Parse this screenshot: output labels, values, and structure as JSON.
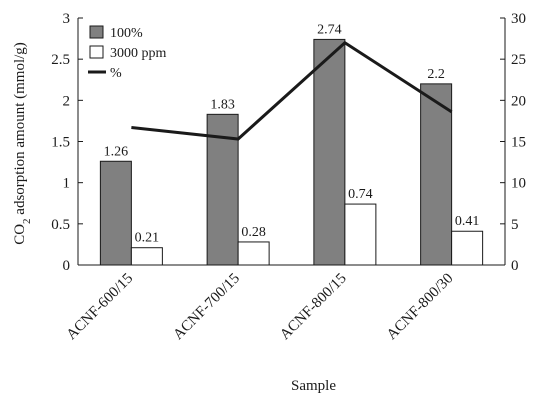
{
  "chart_data": {
    "type": "bar",
    "categories": [
      "ACNF-600/15",
      "ACNF-700/15",
      "ACNF-800/15",
      "ACNF-800/30"
    ],
    "series": [
      {
        "name": "100%",
        "kind": "bar",
        "axis": "left",
        "color": "#808080",
        "values": [
          1.26,
          1.83,
          2.74,
          2.2
        ],
        "labels": [
          "1.26",
          "1.83",
          "2.74",
          "2.2"
        ]
      },
      {
        "name": "3000 ppm",
        "kind": "bar",
        "axis": "left",
        "color": "#ffffff",
        "values": [
          0.21,
          0.28,
          0.74,
          0.41
        ],
        "labels": [
          "0.21",
          "0.28",
          "0.74",
          "0.41"
        ]
      },
      {
        "name": "%",
        "kind": "line",
        "axis": "right",
        "color": "#1a1a1a",
        "values": [
          16.7,
          15.3,
          27.0,
          18.6
        ]
      }
    ],
    "xlabel": "Sample",
    "ylabel": {
      "pre": "CO",
      "sub": "2",
      "post": " adsorption amount (mmol/g)"
    },
    "ylim": [
      0,
      3
    ],
    "yticks": [
      "0",
      "0.5",
      "1",
      "1.5",
      "2",
      "2.5",
      "3"
    ],
    "y2lim": [
      0,
      30
    ],
    "y2ticks": [
      "0",
      "5",
      "10",
      "15",
      "20",
      "25",
      "30"
    ],
    "legend_position": "top-left",
    "grid": false
  }
}
